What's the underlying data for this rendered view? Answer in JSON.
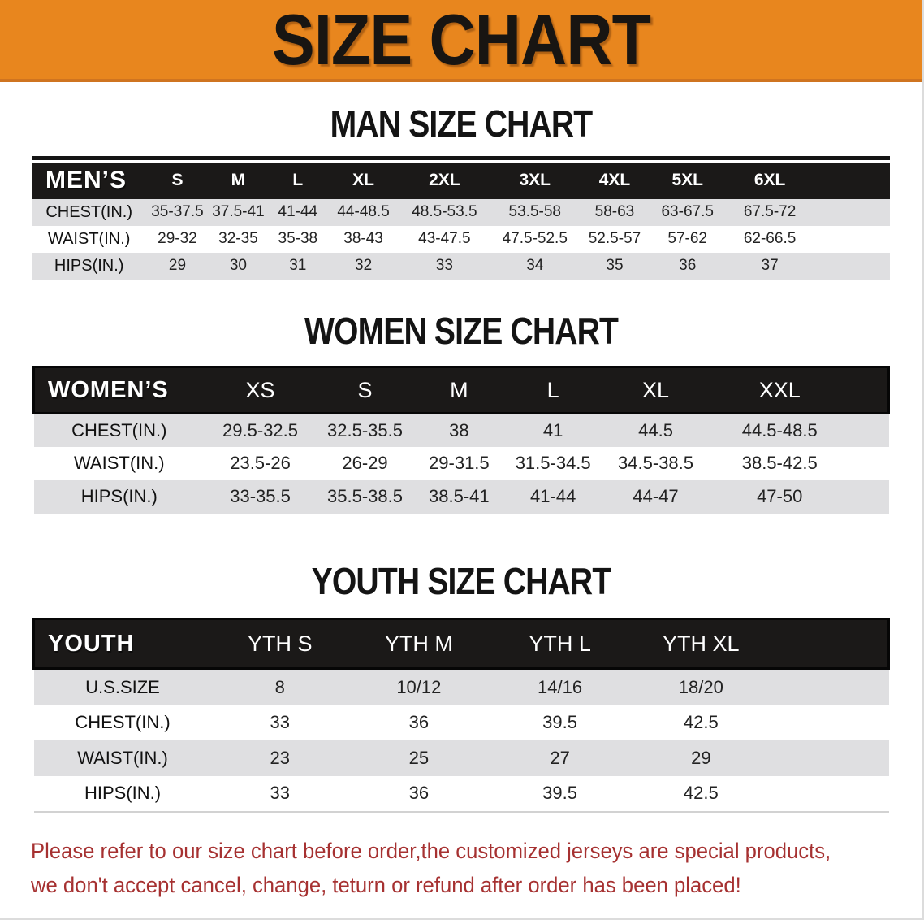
{
  "banner": {
    "title": "SIZE CHART",
    "bg_color": "#E8861E",
    "text_color": "#181512"
  },
  "sections": [
    {
      "id": "men",
      "heading": "MAN SIZE CHART",
      "corner_label": "MEN’S",
      "columns": [
        "S",
        "M",
        "L",
        "XL",
        "2XL",
        "3XL",
        "4XL",
        "5XL",
        "6XL"
      ],
      "rows": [
        {
          "label": "CHEST(IN.)",
          "values": [
            "35-37.5",
            "37.5-41",
            "41-44",
            "44-48.5",
            "48.5-53.5",
            "53.5-58",
            "58-63",
            "63-67.5",
            "67.5-72"
          ]
        },
        {
          "label": "WAIST(IN.)",
          "values": [
            "29-32",
            "32-35",
            "35-38",
            "38-43",
            "43-47.5",
            "47.5-52.5",
            "52.5-57",
            "57-62",
            "62-66.5"
          ]
        },
        {
          "label": "HIPS(IN.)",
          "values": [
            "29",
            "30",
            "31",
            "32",
            "33",
            "34",
            "35",
            "36",
            "37"
          ]
        }
      ]
    },
    {
      "id": "women",
      "heading": "WOMEN SIZE CHART",
      "corner_label": "WOMEN’S",
      "columns": [
        "XS",
        "S",
        "M",
        "L",
        "XL",
        "XXL"
      ],
      "rows": [
        {
          "label": "CHEST(IN.)",
          "values": [
            "29.5-32.5",
            "32.5-35.5",
            "38",
            "41",
            "44.5",
            "44.5-48.5"
          ]
        },
        {
          "label": "WAIST(IN.)",
          "values": [
            "23.5-26",
            "26-29",
            "29-31.5",
            "31.5-34.5",
            "34.5-38.5",
            "38.5-42.5"
          ]
        },
        {
          "label": "HIPS(IN.)",
          "values": [
            "33-35.5",
            "35.5-38.5",
            "38.5-41",
            "41-44",
            "44-47",
            "47-50"
          ]
        }
      ]
    },
    {
      "id": "youth",
      "heading": "YOUTH SIZE CHART",
      "corner_label": "YOUTH",
      "columns": [
        "YTH S",
        "YTH M",
        "YTH L",
        "YTH XL"
      ],
      "rows": [
        {
          "label": "U.S.SIZE",
          "values": [
            "8",
            "10/12",
            "14/16",
            "18/20"
          ]
        },
        {
          "label": "CHEST(IN.)",
          "values": [
            "33",
            "36",
            "39.5",
            "42.5"
          ]
        },
        {
          "label": "WAIST(IN.)",
          "values": [
            "23",
            "25",
            "27",
            "29"
          ]
        },
        {
          "label": "HIPS(IN.)",
          "values": [
            "33",
            "36",
            "39.5",
            "42.5"
          ]
        }
      ]
    }
  ],
  "footnote": {
    "line1": "Please refer to our size chart before order,the customized jerseys are special products,",
    "line2": "we don't accept cancel, change, teturn or refund after order has been placed!",
    "text_color": "#A63131"
  },
  "colors": {
    "banner_orange": "#E8861E",
    "table_header_bg": "#1B1918",
    "band_gray": "#DFDFE1",
    "footnote_red": "#A63131"
  }
}
